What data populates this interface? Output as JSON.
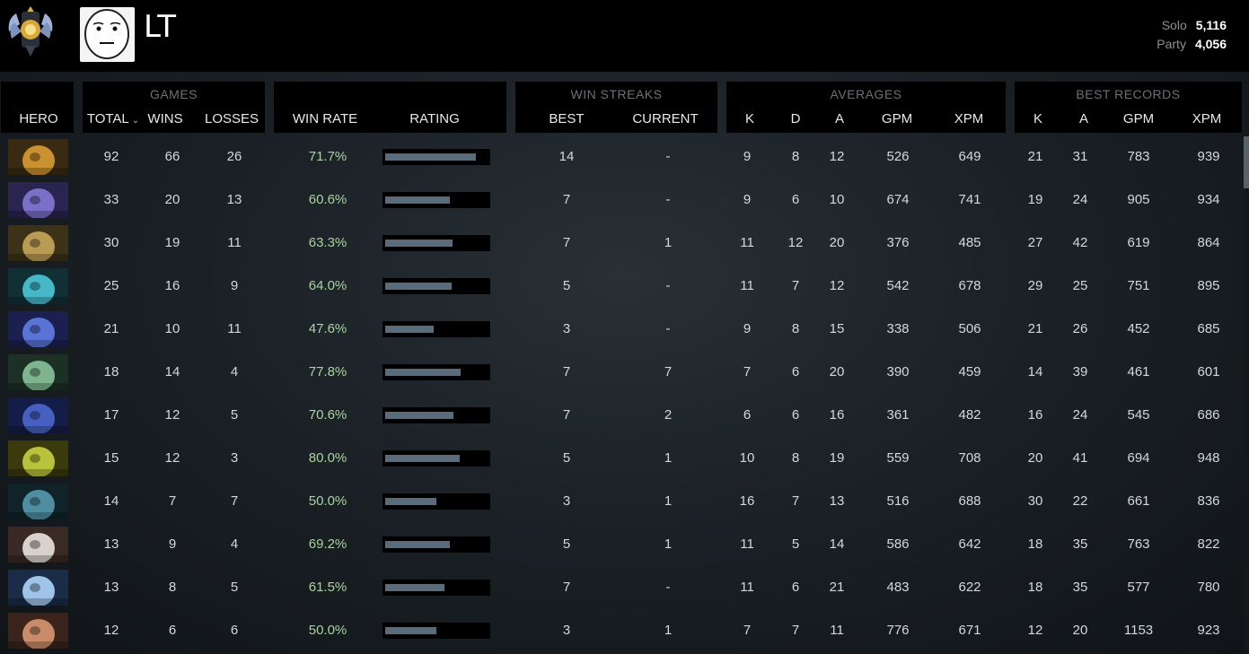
{
  "profile": {
    "name": "LT",
    "rank_icon": "rank-medal-icon",
    "avatar_icon": "meme-face-avatar-icon",
    "mmr": [
      {
        "label": "Solo",
        "value": "5,116"
      },
      {
        "label": "Party",
        "value": "4,056"
      }
    ]
  },
  "table": {
    "groups": {
      "games": "GAMES",
      "win_streaks": "WIN STREAKS",
      "averages": "AVERAGES",
      "best_records": "BEST RECORDS"
    },
    "columns": {
      "hero": "HERO",
      "total": "TOTAL",
      "wins": "WINS",
      "losses": "LOSSES",
      "win_rate": "WIN RATE",
      "rating": "RATING",
      "best": "BEST",
      "current": "CURRENT",
      "avg_k": "K",
      "avg_d": "D",
      "avg_a": "A",
      "avg_gpm": "GPM",
      "avg_xpm": "XPM",
      "best_k": "K",
      "best_a": "A",
      "best_gpm": "GPM",
      "best_xpm": "XPM"
    },
    "sort_icon": "chevron-down-icon",
    "colors": {
      "win_rate_text": "#a9d3a0",
      "rating_fill": "#5a6c79",
      "header_bg": "#000000"
    },
    "rows": [
      {
        "hero_icon": "hero-portrait-gold",
        "total": "92",
        "wins": "66",
        "losses": "26",
        "win_rate": "71.7%",
        "rating": 0.89,
        "best": "14",
        "current": "-",
        "k": "9",
        "d": "8",
        "a": "12",
        "gpm": "526",
        "xpm": "649",
        "bk": "21",
        "ba": "31",
        "bgpm": "783",
        "bxpm": "939"
      },
      {
        "hero_icon": "hero-portrait-purple",
        "total": "33",
        "wins": "20",
        "losses": "13",
        "win_rate": "60.6%",
        "rating": 0.63,
        "best": "7",
        "current": "-",
        "k": "9",
        "d": "6",
        "a": "10",
        "gpm": "674",
        "xpm": "741",
        "bk": "19",
        "ba": "24",
        "bgpm": "905",
        "bxpm": "934"
      },
      {
        "hero_icon": "hero-portrait-tan",
        "total": "30",
        "wins": "19",
        "losses": "11",
        "win_rate": "63.3%",
        "rating": 0.66,
        "best": "7",
        "current": "1",
        "k": "11",
        "d": "12",
        "a": "20",
        "gpm": "376",
        "xpm": "485",
        "bk": "27",
        "ba": "42",
        "bgpm": "619",
        "bxpm": "864"
      },
      {
        "hero_icon": "hero-portrait-teal",
        "total": "25",
        "wins": "16",
        "losses": "9",
        "win_rate": "64.0%",
        "rating": 0.65,
        "best": "5",
        "current": "-",
        "k": "11",
        "d": "7",
        "a": "12",
        "gpm": "542",
        "xpm": "678",
        "bk": "29",
        "ba": "25",
        "bgpm": "751",
        "bxpm": "895"
      },
      {
        "hero_icon": "hero-portrait-blue",
        "total": "21",
        "wins": "10",
        "losses": "11",
        "win_rate": "47.6%",
        "rating": 0.47,
        "best": "3",
        "current": "-",
        "k": "9",
        "d": "8",
        "a": "15",
        "gpm": "338",
        "xpm": "506",
        "bk": "21",
        "ba": "26",
        "bgpm": "452",
        "bxpm": "685"
      },
      {
        "hero_icon": "hero-portrait-green",
        "total": "18",
        "wins": "14",
        "losses": "4",
        "win_rate": "77.8%",
        "rating": 0.74,
        "best": "7",
        "current": "7",
        "k": "7",
        "d": "6",
        "a": "20",
        "gpm": "390",
        "xpm": "459",
        "bk": "14",
        "ba": "39",
        "bgpm": "461",
        "bxpm": "601"
      },
      {
        "hero_icon": "hero-portrait-navy",
        "total": "17",
        "wins": "12",
        "losses": "5",
        "win_rate": "70.6%",
        "rating": 0.67,
        "best": "7",
        "current": "2",
        "k": "6",
        "d": "6",
        "a": "16",
        "gpm": "361",
        "xpm": "482",
        "bk": "16",
        "ba": "24",
        "bgpm": "545",
        "bxpm": "686"
      },
      {
        "hero_icon": "hero-portrait-yellow",
        "total": "15",
        "wins": "12",
        "losses": "3",
        "win_rate": "80.0%",
        "rating": 0.73,
        "best": "5",
        "current": "1",
        "k": "10",
        "d": "8",
        "a": "19",
        "gpm": "559",
        "xpm": "708",
        "bk": "20",
        "ba": "41",
        "bgpm": "694",
        "bxpm": "948"
      },
      {
        "hero_icon": "hero-portrait-dark-teal",
        "total": "14",
        "wins": "7",
        "losses": "7",
        "win_rate": "50.0%",
        "rating": 0.5,
        "best": "3",
        "current": "1",
        "k": "16",
        "d": "7",
        "a": "13",
        "gpm": "516",
        "xpm": "688",
        "bk": "30",
        "ba": "22",
        "bgpm": "661",
        "bxpm": "836"
      },
      {
        "hero_icon": "hero-portrait-white",
        "total": "13",
        "wins": "9",
        "losses": "4",
        "win_rate": "69.2%",
        "rating": 0.63,
        "best": "5",
        "current": "1",
        "k": "11",
        "d": "5",
        "a": "14",
        "gpm": "586",
        "xpm": "642",
        "bk": "18",
        "ba": "35",
        "bgpm": "763",
        "bxpm": "822"
      },
      {
        "hero_icon": "hero-portrait-ice",
        "total": "13",
        "wins": "8",
        "losses": "5",
        "win_rate": "61.5%",
        "rating": 0.58,
        "best": "7",
        "current": "-",
        "k": "11",
        "d": "6",
        "a": "21",
        "gpm": "483",
        "xpm": "622",
        "bk": "18",
        "ba": "35",
        "bgpm": "577",
        "bxpm": "780"
      },
      {
        "hero_icon": "hero-portrait-pair",
        "total": "12",
        "wins": "6",
        "losses": "6",
        "win_rate": "50.0%",
        "rating": 0.5,
        "best": "3",
        "current": "1",
        "k": "7",
        "d": "7",
        "a": "11",
        "gpm": "776",
        "xpm": "671",
        "bk": "12",
        "ba": "20",
        "bgpm": "1153",
        "bxpm": "923"
      }
    ]
  }
}
